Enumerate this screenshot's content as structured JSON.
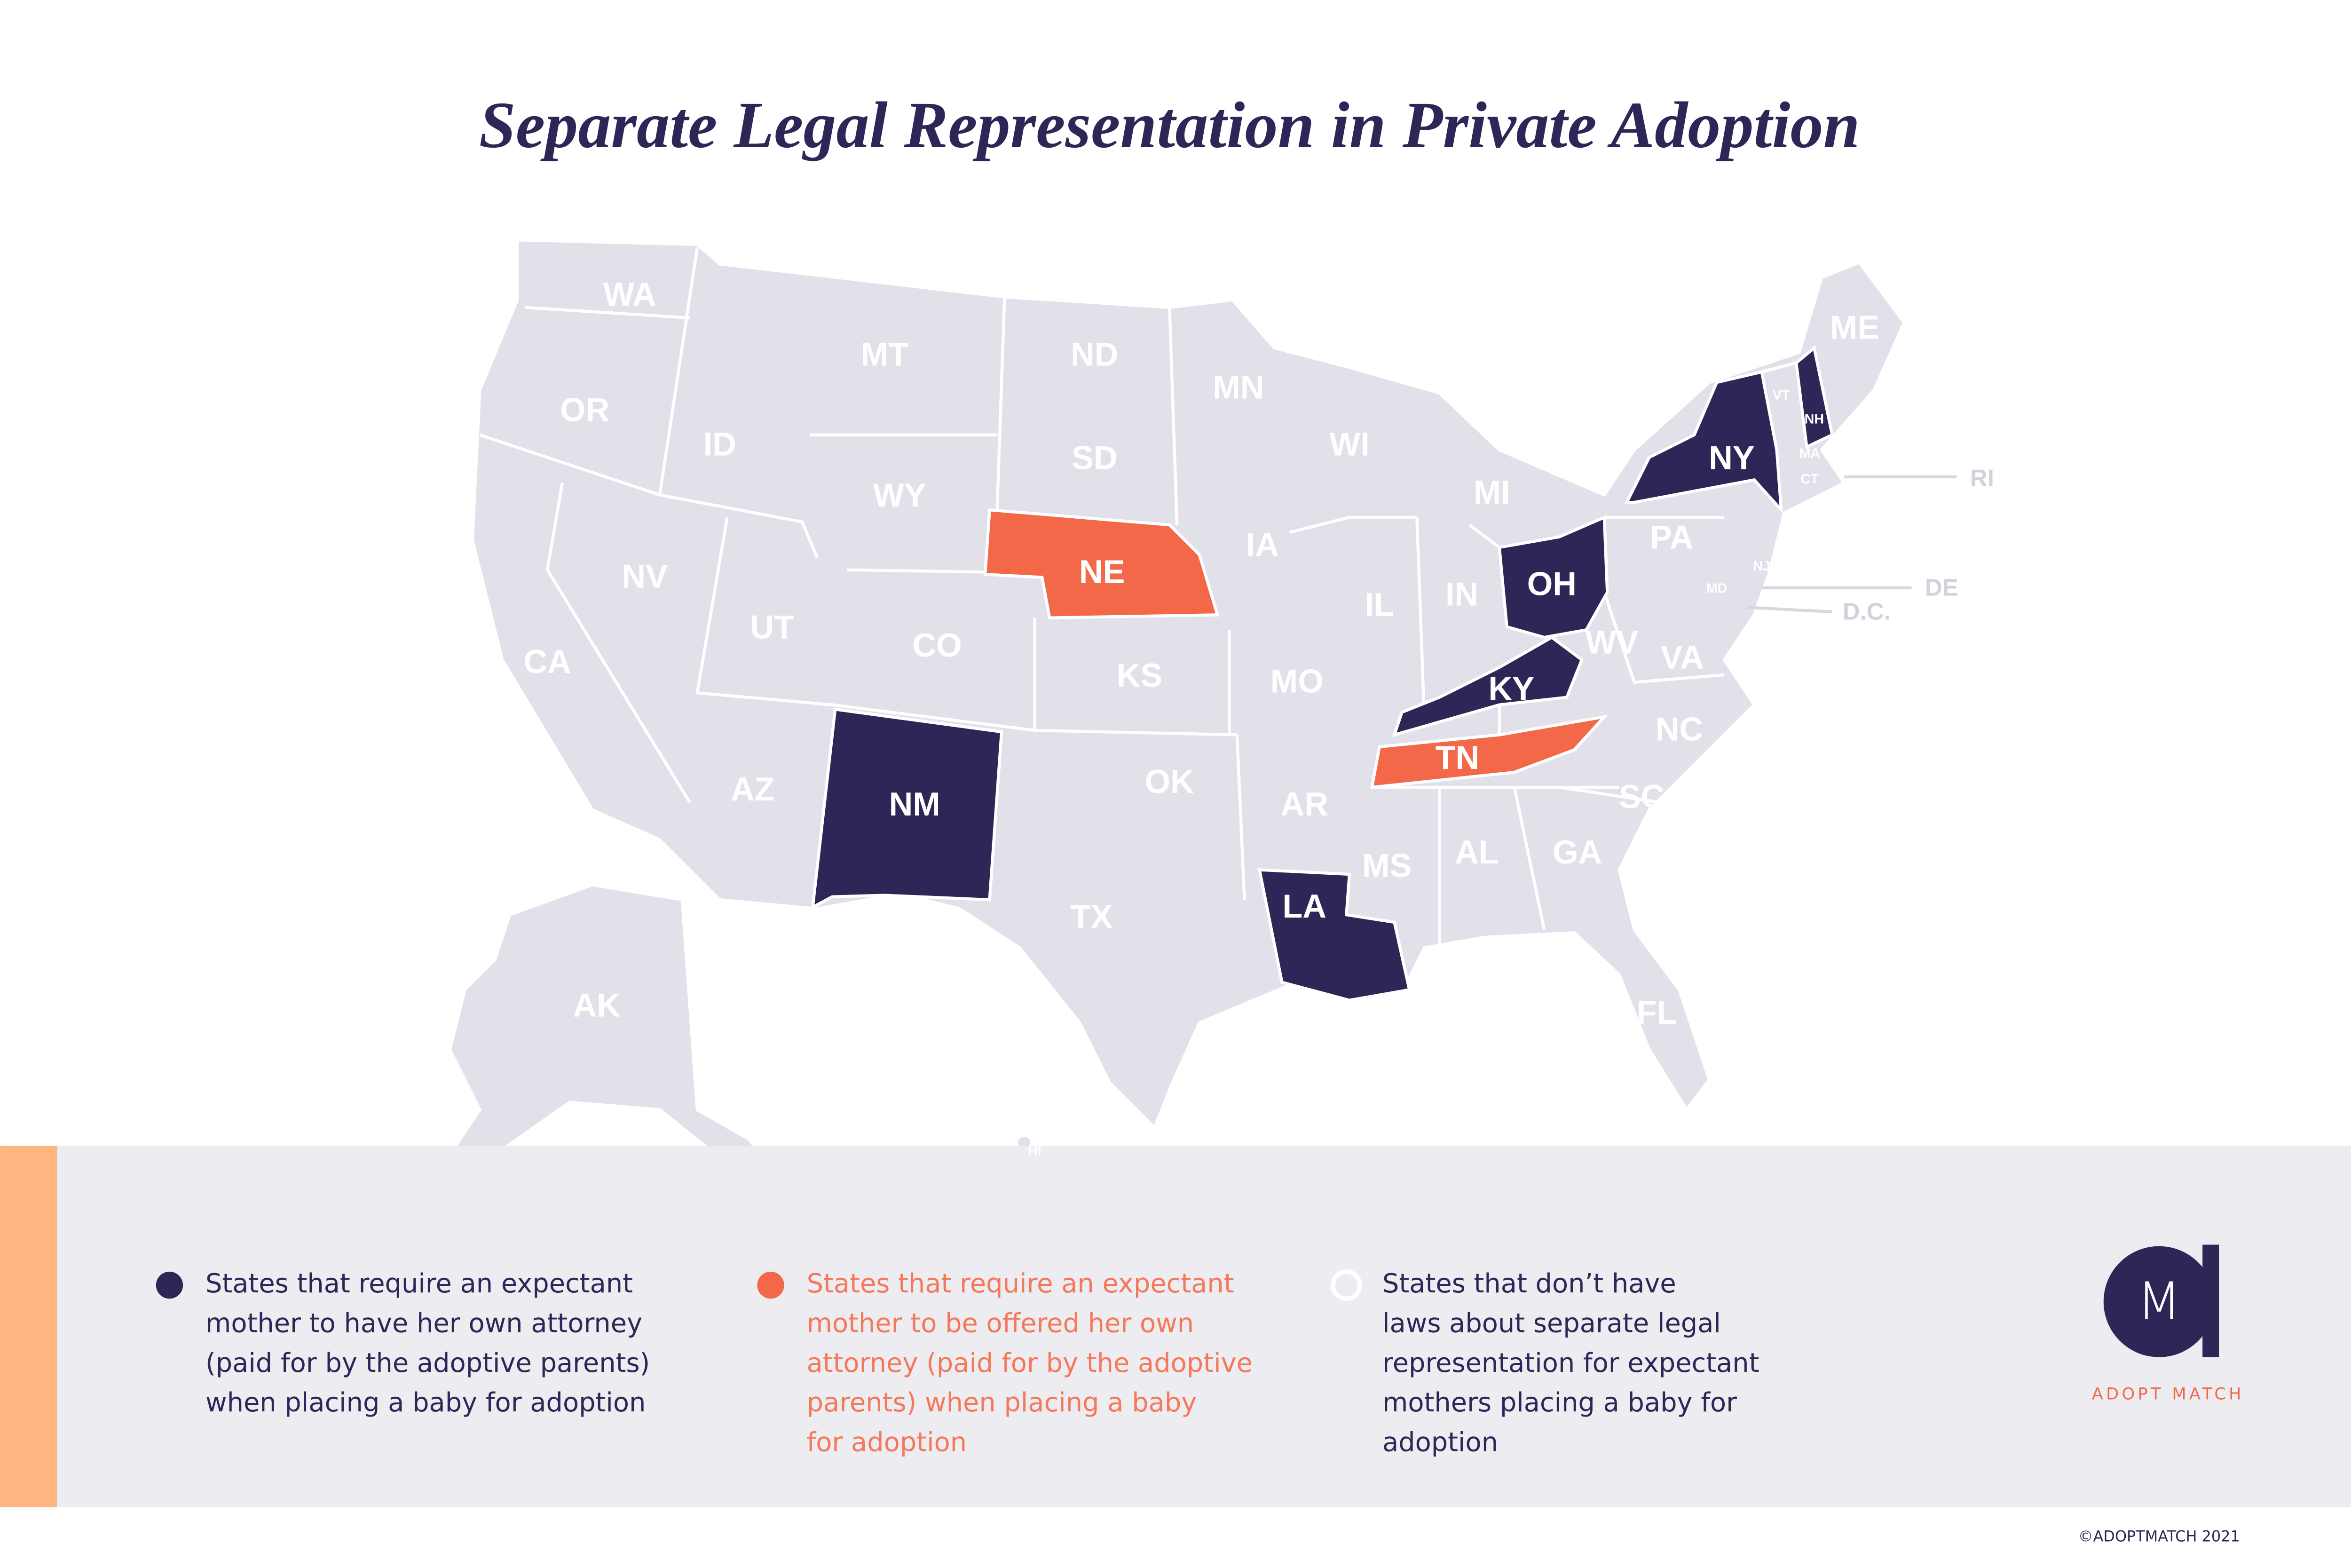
{
  "title": "Separate Legal Representation in Private Adoption",
  "states": [
    {
      "label": "WA",
      "category": "none"
    },
    {
      "label": "OR",
      "category": "none"
    },
    {
      "label": "CA",
      "category": "none"
    },
    {
      "label": "NV",
      "category": "none"
    },
    {
      "label": "ID",
      "category": "none"
    },
    {
      "label": "MT",
      "category": "none"
    },
    {
      "label": "WY",
      "category": "none"
    },
    {
      "label": "UT",
      "category": "none"
    },
    {
      "label": "CO",
      "category": "none"
    },
    {
      "label": "AZ",
      "category": "none"
    },
    {
      "label": "NM",
      "category": "required"
    },
    {
      "label": "ND",
      "category": "none"
    },
    {
      "label": "SD",
      "category": "none"
    },
    {
      "label": "NE",
      "category": "offered"
    },
    {
      "label": "KS",
      "category": "none"
    },
    {
      "label": "OK",
      "category": "none"
    },
    {
      "label": "TX",
      "category": "none"
    },
    {
      "label": "MN",
      "category": "none"
    },
    {
      "label": "IA",
      "category": "none"
    },
    {
      "label": "MO",
      "category": "none"
    },
    {
      "label": "AR",
      "category": "none"
    },
    {
      "label": "LA",
      "category": "required"
    },
    {
      "label": "WI",
      "category": "none"
    },
    {
      "label": "IL",
      "category": "none"
    },
    {
      "label": "MS",
      "category": "none"
    },
    {
      "label": "MI",
      "category": "none"
    },
    {
      "label": "IN",
      "category": "none"
    },
    {
      "label": "OH",
      "category": "required"
    },
    {
      "label": "KY",
      "category": "required"
    },
    {
      "label": "TN",
      "category": "offered"
    },
    {
      "label": "AL",
      "category": "none"
    },
    {
      "label": "GA",
      "category": "none"
    },
    {
      "label": "FL",
      "category": "none"
    },
    {
      "label": "SC",
      "category": "none"
    },
    {
      "label": "NC",
      "category": "none"
    },
    {
      "label": "VA",
      "category": "none"
    },
    {
      "label": "WV",
      "category": "none"
    },
    {
      "label": "PA",
      "category": "none"
    },
    {
      "label": "NY",
      "category": "required"
    },
    {
      "label": "VT",
      "category": "none"
    },
    {
      "label": "NH",
      "category": "required"
    },
    {
      "label": "ME",
      "category": "none"
    },
    {
      "label": "MA",
      "category": "none"
    },
    {
      "label": "CT",
      "category": "none"
    },
    {
      "label": "RI",
      "category": "none"
    },
    {
      "label": "NJ",
      "category": "none"
    },
    {
      "label": "DE",
      "category": "none"
    },
    {
      "label": "MD",
      "category": "none"
    },
    {
      "label": "D.C.",
      "category": "none"
    },
    {
      "label": "AK",
      "category": "none"
    },
    {
      "label": "HI",
      "category": "none"
    }
  ],
  "legend": [
    {
      "category": "required",
      "color": "#2e2657",
      "text_color": "#2e2657",
      "lines": [
        "States that require an expectant",
        "mother to have her own attorney",
        "(paid for by the adoptive parents)",
        "when placing a baby for adoption"
      ]
    },
    {
      "category": "offered",
      "color": "#f26849",
      "text_color": "#f4785a",
      "lines": [
        "States that require an expectant",
        "mother to be offered her own",
        "attorney (paid for by the adoptive",
        "parents) when placing a baby",
        "for adoption"
      ]
    },
    {
      "category": "none",
      "color": "#ffffff",
      "text_color": "#2e2657",
      "lines": [
        "States that don’t have",
        "laws about separate legal",
        "representation for expectant",
        "mothers placing a baby for",
        "adoption"
      ]
    }
  ],
  "logo": {
    "letter": "M",
    "name": "ADOPT MATCH"
  },
  "copyright": "©ADOPTMATCH 2021"
}
